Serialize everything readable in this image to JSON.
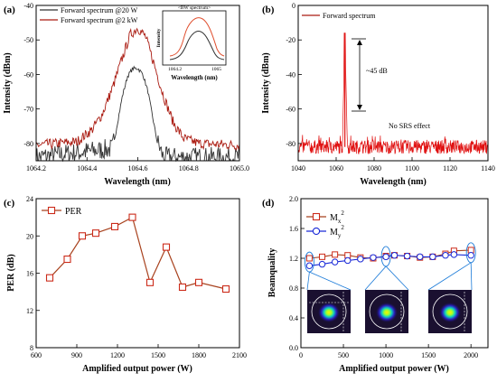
{
  "chart_data": [
    {
      "panel": "(a)",
      "type": "line",
      "xlabel": "Wavelength (nm)",
      "ylabel": "Intensity (dBm)",
      "xlim": [
        1064.2,
        1065.0
      ],
      "ylim": [
        -85,
        -40
      ],
      "xticks": [
        1064.2,
        1064.4,
        1064.6,
        1064.8,
        1065.0
      ],
      "yticks": [
        -80,
        -70,
        -60,
        -50,
        -40
      ],
      "legend_position": "top-left",
      "series": [
        {
          "name": "Forward spectrum @20 W",
          "color": "#333333",
          "x": [
            1064.2,
            1064.5,
            1064.52,
            1064.54,
            1064.56,
            1064.58,
            1064.6,
            1064.62,
            1064.64,
            1064.66,
            1064.68,
            1064.7,
            1065.0
          ],
          "y": [
            -85,
            -82.5,
            -74,
            -66,
            -60.5,
            -58.3,
            -58.2,
            -60,
            -65,
            -73,
            -81,
            -85,
            -85
          ]
        },
        {
          "name": "Forward spectrum @2 kW",
          "color": "#aa1a10",
          "x": [
            1064.2,
            1064.36,
            1064.42,
            1064.46,
            1064.5,
            1064.54,
            1064.57,
            1064.6,
            1064.63,
            1064.66,
            1064.7,
            1064.74,
            1064.78,
            1064.84,
            1065.0
          ],
          "y": [
            -80.5,
            -79.5,
            -76,
            -71.5,
            -64,
            -55,
            -48.5,
            -46.5,
            -49,
            -56,
            -66,
            -74,
            -78.5,
            -80,
            -80.5
          ]
        }
      ],
      "inset": {
        "title": "<BW spectrum>",
        "xlabel": "Wavelength (nm)",
        "ylabel": "Intensity",
        "xticks": [
          1064.2,
          1065.0
        ]
      }
    },
    {
      "panel": "(b)",
      "type": "line",
      "xlabel": "Wavelength (nm)",
      "ylabel": "Intensity (dBm)",
      "xlim": [
        1040,
        1140
      ],
      "ylim": [
        -90,
        0
      ],
      "xticks": [
        1040,
        1060,
        1080,
        1100,
        1120,
        1140
      ],
      "yticks": [
        -80,
        -60,
        -40,
        -20,
        0
      ],
      "legend_position": "top-left",
      "series": [
        {
          "name": "Forward spectrum",
          "color": "#e01010",
          "peak_wavelength": 1064.6,
          "peak_value": -16,
          "noise_floor": -82
        }
      ],
      "annotations": [
        "~45 dB",
        "No SRS effect"
      ]
    },
    {
      "panel": "(c)",
      "type": "line",
      "xlabel": "Amplified output power (W)",
      "ylabel": "PER (dB)",
      "xlim": [
        600,
        2100
      ],
      "ylim": [
        8,
        24
      ],
      "xticks": [
        600,
        900,
        1200,
        1500,
        1800,
        2100
      ],
      "yticks": [
        8,
        12,
        16,
        20,
        24
      ],
      "legend_position": "top-left",
      "series": [
        {
          "name": "PER",
          "color": "#a8421e",
          "x": [
            700,
            830,
            940,
            1040,
            1180,
            1310,
            1440,
            1560,
            1680,
            1800,
            2000
          ],
          "y": [
            15.5,
            17.5,
            20.0,
            20.3,
            21.0,
            22.0,
            15.0,
            18.8,
            14.5,
            15.0,
            14.3
          ]
        }
      ]
    },
    {
      "panel": "(d)",
      "type": "line",
      "xlabel": "Amplified output power (W)",
      "ylabel": "Beamquality",
      "xlim": [
        0,
        2200
      ],
      "ylim": [
        0,
        2.0
      ],
      "xticks": [
        0,
        500,
        1000,
        1500,
        2000
      ],
      "yticks": [
        0.0,
        0.4,
        0.8,
        1.2,
        1.6,
        2.0
      ],
      "legend_position": "top-left",
      "series": [
        {
          "name_main": "M",
          "name_sub": "x",
          "name_sup": "2",
          "color": "#a8421e",
          "x": [
            100,
            250,
            400,
            550,
            700,
            850,
            1000,
            1100,
            1250,
            1400,
            1550,
            1700,
            1800,
            2000
          ],
          "y": [
            1.2,
            1.22,
            1.25,
            1.24,
            1.21,
            1.2,
            1.23,
            1.24,
            1.23,
            1.21,
            1.22,
            1.26,
            1.3,
            1.31
          ]
        },
        {
          "name_main": "M",
          "name_sub": "y",
          "name_sup": "2",
          "color": "#1a2ad8",
          "x": [
            100,
            250,
            400,
            550,
            700,
            850,
            1000,
            1100,
            1250,
            1400,
            1550,
            1700,
            1800,
            2000
          ],
          "y": [
            1.1,
            1.12,
            1.15,
            1.17,
            1.19,
            1.21,
            1.22,
            1.24,
            1.23,
            1.22,
            1.22,
            1.24,
            1.25,
            1.24
          ]
        }
      ]
    }
  ]
}
